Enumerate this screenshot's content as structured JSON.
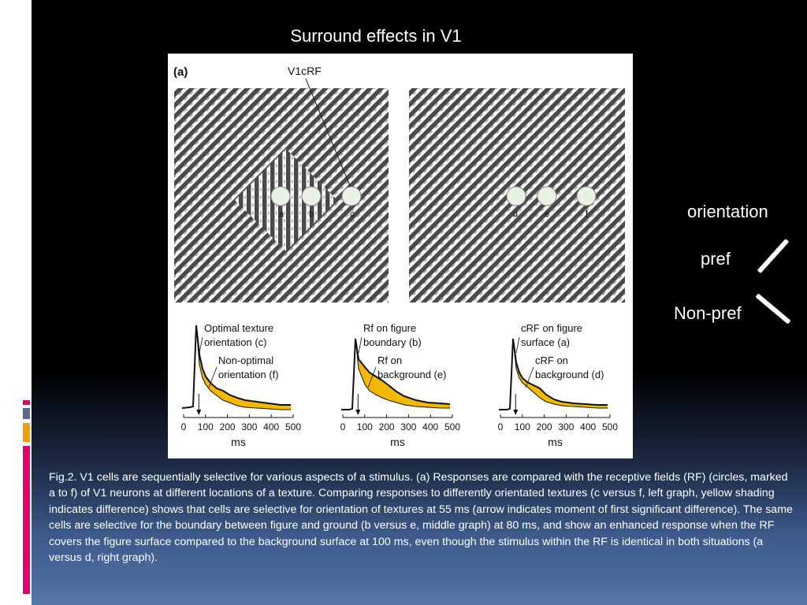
{
  "slide": {
    "title": "Surround effects in V1",
    "colors": {
      "background_top": "#000000",
      "background_bottom": "#5576a8",
      "accent_magenta": "#e0006e",
      "accent_orange": "#f0a000",
      "accent_gray": "#5a6a80",
      "difference_fill": "#f5b800"
    }
  },
  "figure": {
    "panel_label": "(a)",
    "pointer_label": "V1cRF",
    "left_circles": [
      "a",
      "b",
      "c"
    ],
    "right_circles": [
      "d",
      "e",
      "f"
    ],
    "graphs": [
      {
        "annot1": [
          "Optimal texture",
          "orientation (c)"
        ],
        "annot2": [
          "Non-optimal",
          "orientation (f)"
        ],
        "ticks": [
          "0",
          "100",
          "200",
          "300",
          "400",
          "500"
        ],
        "xlabel": "ms"
      },
      {
        "annot1": [
          "Rf on figure",
          "boundary (b)"
        ],
        "annot2": [
          "Rf on",
          "background (e)"
        ],
        "ticks": [
          "0",
          "100",
          "200",
          "300",
          "400",
          "500"
        ],
        "xlabel": "ms"
      },
      {
        "annot1": [
          "cRF on figure",
          "surface (a)"
        ],
        "annot2": [
          "cRF on",
          "background (d)"
        ],
        "ticks": [
          "0",
          "100",
          "200",
          "300",
          "400",
          "500"
        ],
        "xlabel": "ms"
      }
    ]
  },
  "legend": {
    "heading": "orientation",
    "pref": "pref",
    "nonpref": "Non-pref",
    "pref_icon": "forward-slash-bar-icon",
    "nonpref_icon": "back-slash-bar-icon"
  },
  "caption": "Fig.2. V1 cells are sequentially selective for various aspects of a stimulus. (a) Responses are compared with the receptive fields (RF) (circles, marked a to f) of V1 neurons at different locations of a texture. Comparing responses to differently orientated textures (c versus f, left graph, yellow shading indicates difference) shows that cells are selective for orientation of textures at 55 ms (arrow indicates moment of first significant difference). The same cells are selective for the boundary between figure and ground (b versus e, middle graph) at 80 ms, and show an enhanced response when the RF covers the figure surface compared to the background surface at 100 ms, even though the stimulus within the RF is identical in both situations (a versus d, right graph)."
}
